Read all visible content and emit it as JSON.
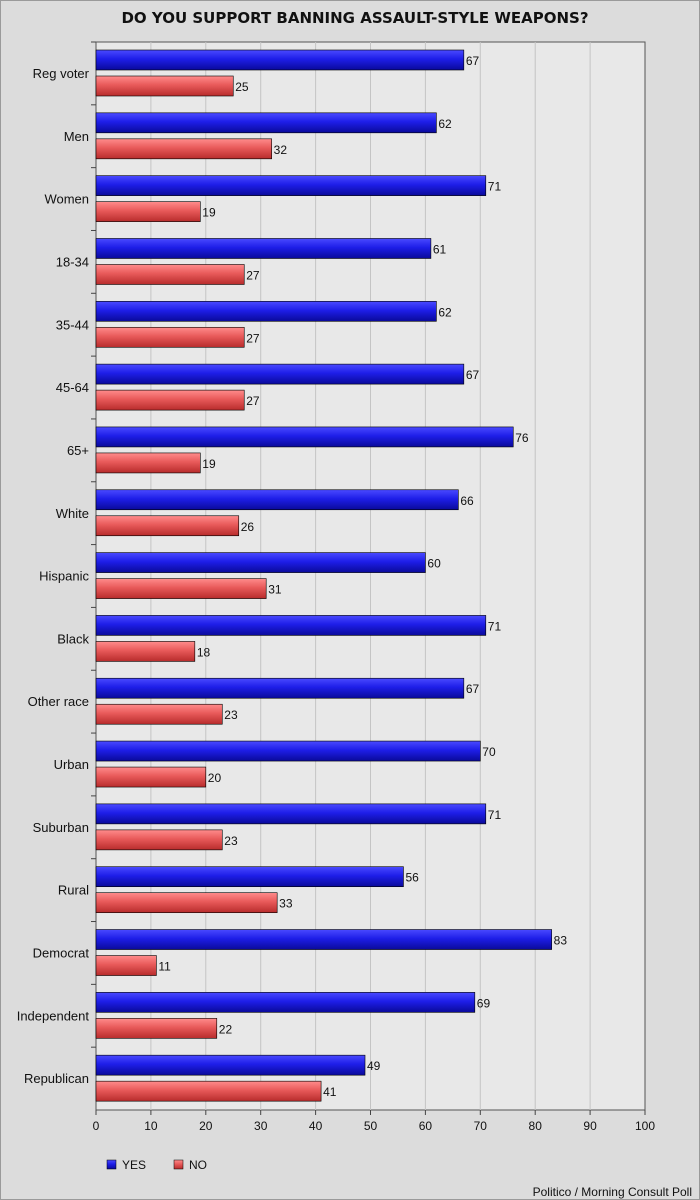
{
  "chart_data": {
    "type": "bar",
    "orientation": "horizontal",
    "title": "DO YOU SUPPORT BANNING ASSAULT-STYLE WEAPONS?",
    "categories": [
      "Reg voter",
      "Men",
      "Women",
      "18-34",
      "35-44",
      "45-64",
      "65+",
      "White",
      "Hispanic",
      "Black",
      "Other race",
      "Urban",
      "Suburban",
      "Rural",
      "Democrat",
      "Independent",
      "Republican"
    ],
    "series": [
      {
        "name": "YES",
        "color": "#1515e0",
        "values": [
          67,
          62,
          71,
          61,
          62,
          67,
          76,
          66,
          60,
          71,
          67,
          70,
          71,
          56,
          83,
          69,
          49
        ]
      },
      {
        "name": "NO",
        "color": "#e05555",
        "values": [
          25,
          32,
          19,
          27,
          27,
          27,
          19,
          26,
          31,
          18,
          23,
          20,
          23,
          33,
          11,
          22,
          41
        ]
      }
    ],
    "xlim": [
      0,
      100
    ],
    "xticks": [
      0,
      10,
      20,
      30,
      40,
      50,
      60,
      70,
      80,
      90,
      100
    ],
    "grid": true,
    "legend_position": "bottom-left",
    "source": "Politico / Morning Consult Poll"
  }
}
